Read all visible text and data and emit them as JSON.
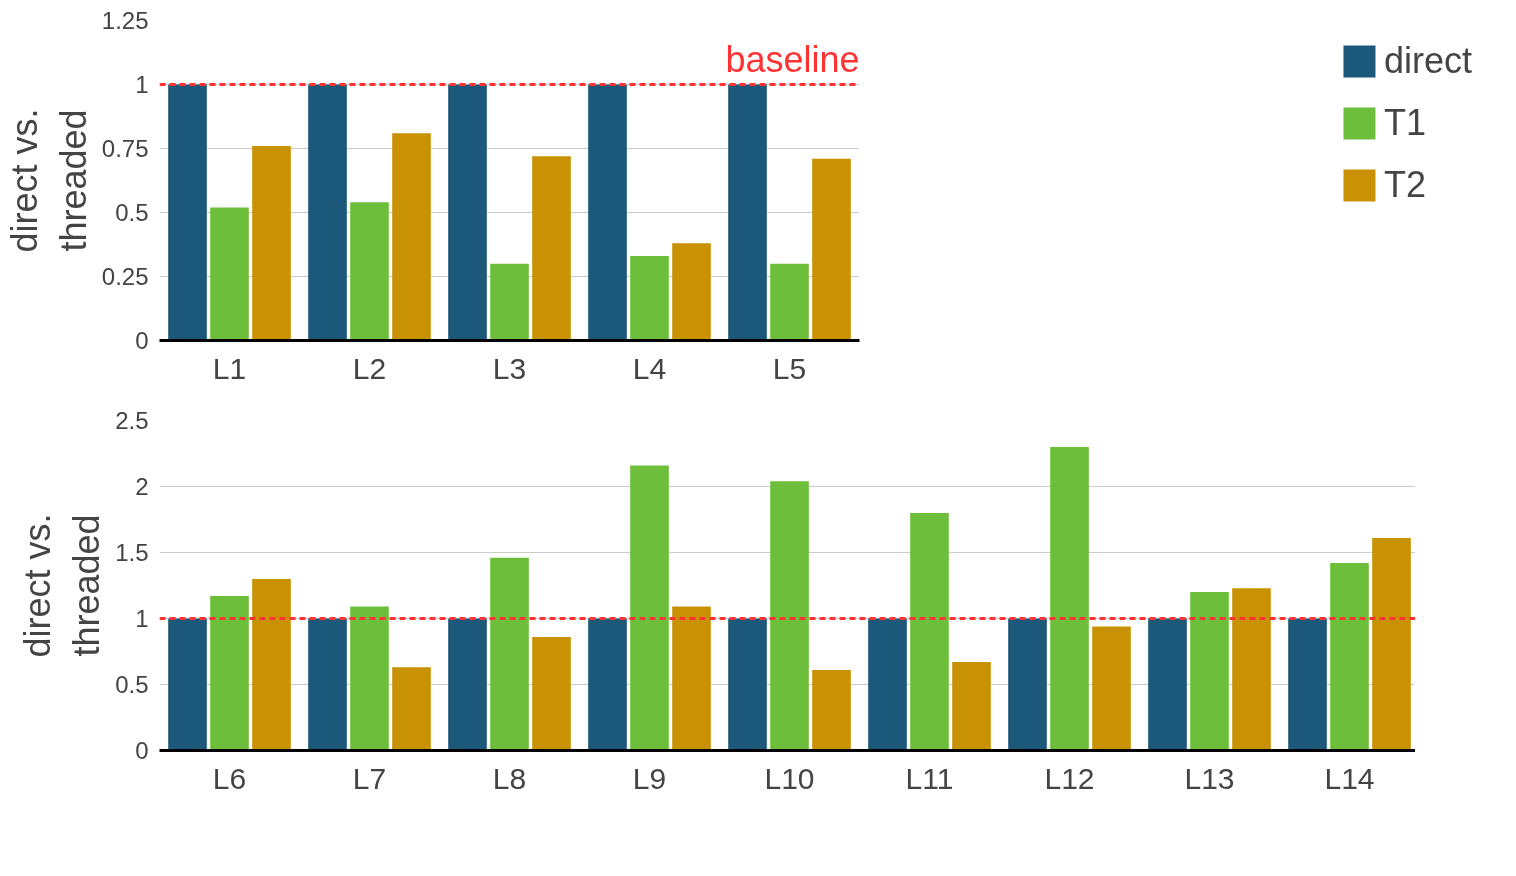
{
  "chart_data": [
    {
      "type": "bar",
      "ylabel": "direct vs.\nthreaded",
      "categories": [
        "L1",
        "L2",
        "L3",
        "L4",
        "L5"
      ],
      "series": [
        {
          "name": "direct",
          "color": "#1b5879",
          "values": [
            1,
            1,
            1,
            1,
            1
          ]
        },
        {
          "name": "T1",
          "color": "#6dbf3b",
          "values": [
            0.52,
            0.54,
            0.3,
            0.33,
            0.3
          ]
        },
        {
          "name": "T2",
          "color": "#c99104",
          "values": [
            0.76,
            0.81,
            0.72,
            0.38,
            0.71
          ]
        }
      ],
      "ylim": [
        0,
        1.25
      ],
      "yticks": [
        0,
        0.25,
        0.5,
        0.75,
        1,
        1.25
      ],
      "grid": "y",
      "legend": "right",
      "ref_lines": [
        {
          "axis": "y",
          "value": 1,
          "label": "baseline",
          "color": "#ff3333",
          "line_style": "dashed"
        }
      ]
    },
    {
      "type": "bar",
      "ylabel": "direct vs.\nthreaded",
      "categories": [
        "L6",
        "L7",
        "L8",
        "L9",
        "L10",
        "L11",
        "L12",
        "L13",
        "L14"
      ],
      "series": [
        {
          "color": "#1b5879",
          "values": [
            1,
            1,
            1,
            1,
            1,
            1,
            1,
            1,
            1
          ]
        },
        {
          "color": "#6dbf3b",
          "values": [
            1.17,
            1.09,
            1.46,
            2.16,
            2.04,
            1.8,
            2.3,
            1.2,
            1.42
          ]
        },
        {
          "color": "#c99104",
          "values": [
            1.3,
            0.63,
            0.86,
            1.09,
            0.61,
            0.67,
            0.94,
            1.23,
            1.61
          ]
        }
      ],
      "ylim": [
        0,
        2.5
      ],
      "yticks": [
        0,
        0.5,
        1,
        1.5,
        2,
        2.5
      ],
      "grid": "y",
      "legend": false,
      "ref_lines": [
        {
          "axis": "y",
          "value": 1,
          "label": null,
          "color": "#ff3333",
          "line_style": "dashed"
        }
      ]
    }
  ]
}
